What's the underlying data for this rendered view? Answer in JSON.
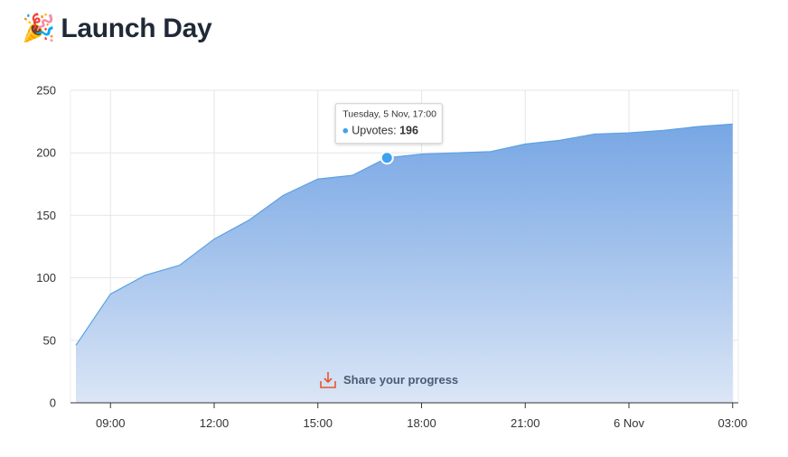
{
  "header": {
    "icon": "party-popper",
    "icon_glyph": "🎉",
    "title": "Launch Day"
  },
  "chart_data": {
    "type": "area",
    "series": [
      {
        "name": "Upvotes",
        "color": "#4a90e2",
        "points": [
          [
            "8:00",
            46
          ],
          [
            "9:00",
            87
          ],
          [
            "10:00",
            102
          ],
          [
            "11:00",
            110
          ],
          [
            "12:00",
            131
          ],
          [
            "13:00",
            146
          ],
          [
            "14:00",
            166
          ],
          [
            "15:00",
            179
          ],
          [
            "16:00",
            182
          ],
          [
            "17:00",
            196
          ],
          [
            "18:00",
            199
          ],
          [
            "19:00",
            200
          ],
          [
            "20:00",
            201
          ],
          [
            "21:00",
            207
          ],
          [
            "22:00",
            210
          ],
          [
            "23:00",
            215
          ],
          [
            "0:00",
            216
          ],
          [
            "1:00",
            218
          ],
          [
            "2:00",
            221
          ],
          [
            "3:00",
            223
          ]
        ]
      }
    ],
    "x_ticks": [
      "09:00",
      "12:00",
      "15:00",
      "18:00",
      "21:00",
      "6 Nov",
      "03:00"
    ],
    "y_ticks": [
      0,
      50,
      100,
      150,
      200,
      250
    ],
    "ylim": [
      0,
      250
    ],
    "grid": true,
    "tooltip": {
      "date": "Tuesday, 5 Nov, 17:00",
      "series": "Upvotes",
      "value": 196
    },
    "action": {
      "icon": "download-icon",
      "label": "Share your progress"
    }
  }
}
